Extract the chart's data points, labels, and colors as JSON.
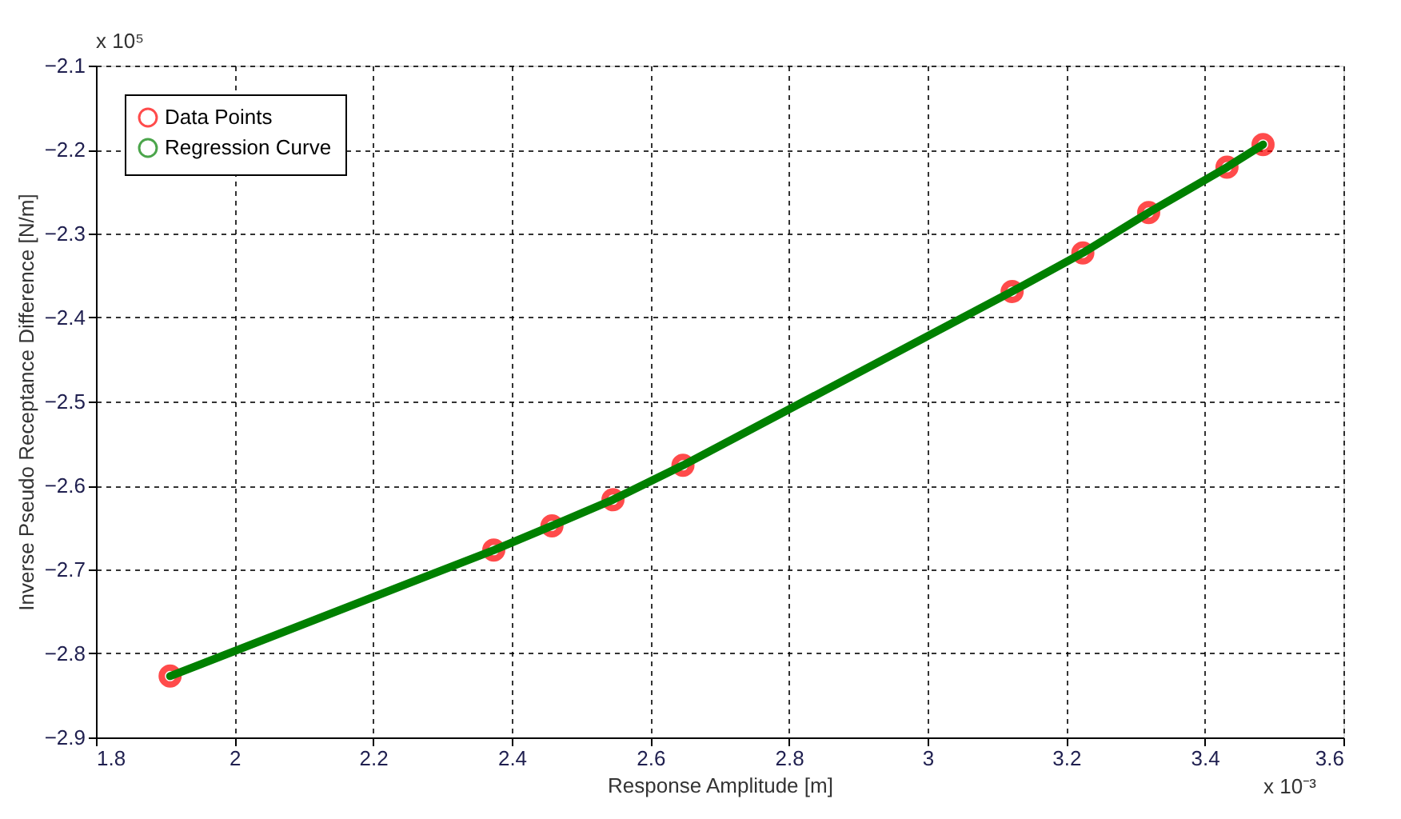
{
  "chart_data": {
    "type": "scatter",
    "xlabel": "Response Amplitude [m]",
    "ylabel": "Inverse Pseudo Receptance Difference [N/m]",
    "annotations": [
      "x 10⁵",
      "x 10⁻³"
    ],
    "x": [
      1.907,
      2.374,
      2.458,
      2.546,
      2.647,
      3.122,
      3.224,
      3.319,
      3.432,
      3.484
    ],
    "series": [
      {
        "name": "Data Points",
        "color": "#ff0000",
        "marker": "circle",
        "values": [
          -2.827,
          -2.677,
          -2.648,
          -2.617,
          -2.576,
          -2.369,
          -2.323,
          -2.275,
          -2.221,
          -2.194
        ]
      },
      {
        "name": "Regression Curve",
        "type": "line",
        "color": "#008000",
        "line_style": "solid",
        "values": [
          -2.827,
          -2.677,
          -2.648,
          -2.617,
          -2.576,
          -2.369,
          -2.323,
          -2.275,
          -2.221,
          -2.194
        ]
      }
    ],
    "xlim": [
      1.8,
      3.6
    ],
    "xticks": [
      1.8,
      2,
      2.2,
      2.4,
      2.6,
      2.8,
      3,
      3.2,
      3.4,
      3.6
    ],
    "ylim": [
      -2.9,
      -2.1
    ],
    "yticks": [
      -2.9,
      -2.8,
      -2.7,
      -2.6,
      -2.5,
      -2.4,
      -2.3,
      -2.2,
      -2.1
    ],
    "grid": true,
    "legend": "top left"
  }
}
